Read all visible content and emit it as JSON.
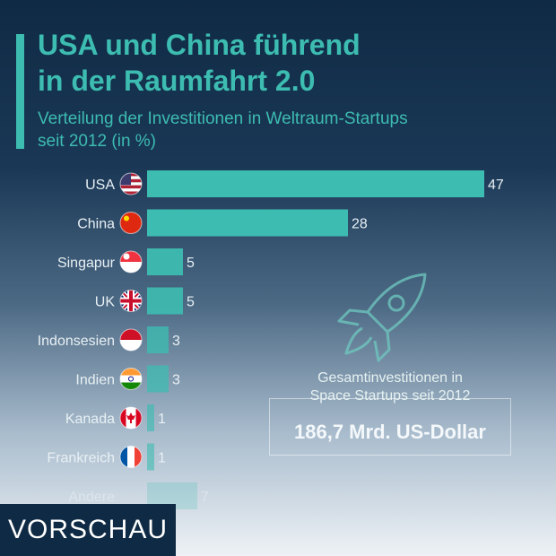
{
  "header": {
    "title_line1": "USA und China führend",
    "title_line2": "in der Raumfahrt 2.0",
    "subtitle_line1": "Verteilung der Investitionen in Weltraum-Startups",
    "subtitle_line2": "seit 2012 (in %)"
  },
  "colors": {
    "accent": "#3dbcb1",
    "background_top": "#0f2a44"
  },
  "info": {
    "label_line1": "Gesamtinvestitionen in",
    "label_line2": "Space Startups seit 2012",
    "value": "186,7 Mrd. US-Dollar",
    "icon": "rocket-icon"
  },
  "badge": {
    "label": "VORSCHAU"
  },
  "chart_data": {
    "type": "bar",
    "orientation": "horizontal",
    "categories": [
      "USA",
      "China",
      "Singapur",
      "UK",
      "Indonsesien",
      "Indien",
      "Kanada",
      "Frankreich",
      "Andere"
    ],
    "values": [
      47,
      28,
      5,
      5,
      3,
      3,
      1,
      1,
      7
    ],
    "value_labels": [
      "47",
      "28",
      "5",
      "5",
      "3",
      "3",
      "1",
      "1",
      "7"
    ],
    "flags": [
      "flag-usa-icon",
      "flag-china-icon",
      "flag-singapore-icon",
      "flag-uk-icon",
      "flag-indonesia-icon",
      "flag-india-icon",
      "flag-canada-icon",
      "flag-france-icon",
      ""
    ],
    "xlim": [
      0,
      50
    ],
    "grid": false,
    "legend": "none"
  }
}
